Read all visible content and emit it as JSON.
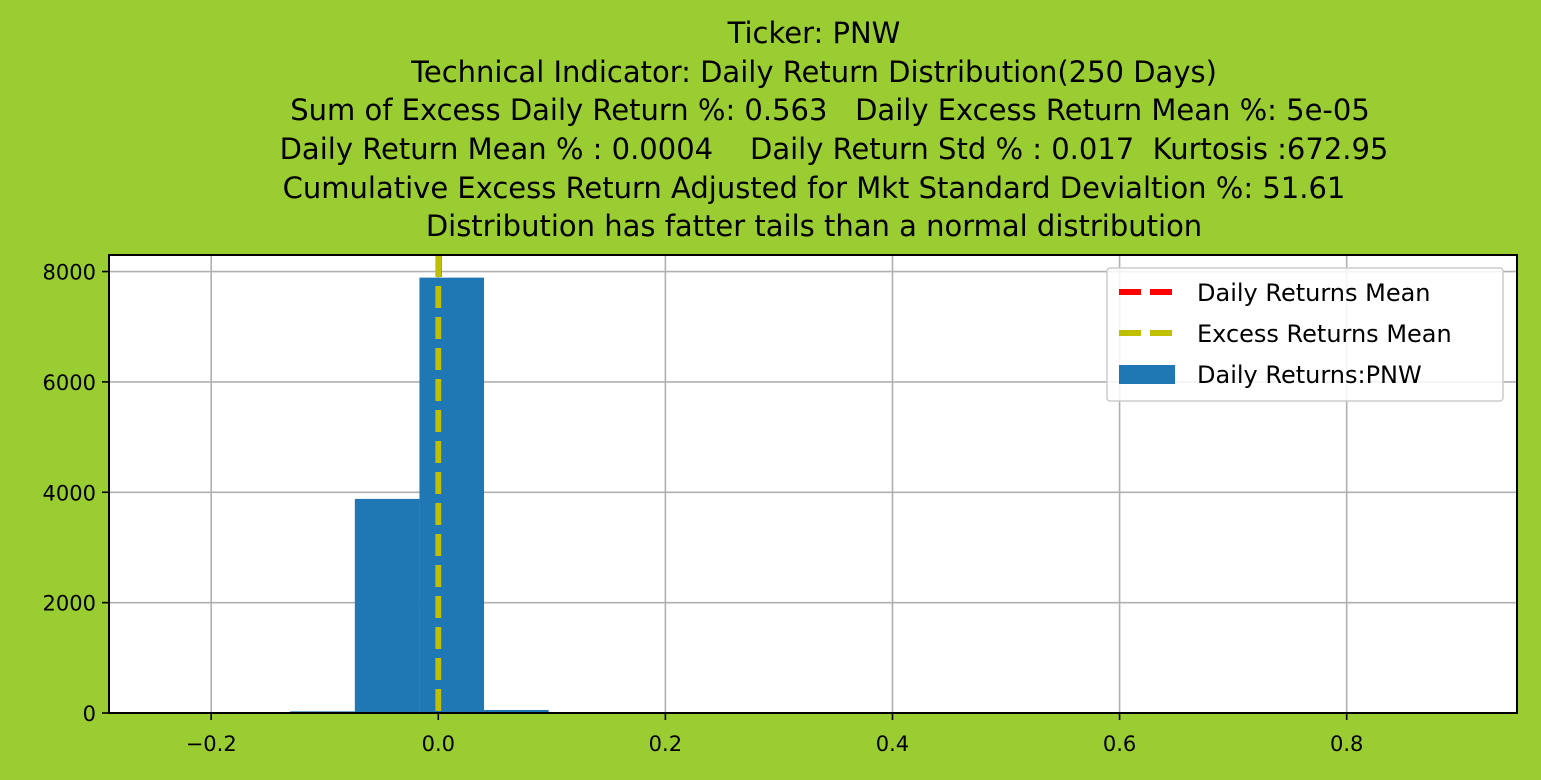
{
  "page": {
    "background": "#9acd32"
  },
  "chart_data": {
    "type": "bar",
    "title_lines": [
      "Ticker: PNW",
      "Technical Indicator: Daily Return Distribution(250 Days)",
      "Sum of Excess Daily Return %: 0.563   Daily Excess Return Mean %: 5e-05",
      "Daily Return Mean % : 0.0004    Daily Return Std % : 0.017  Kurtosis :672.95",
      "Cumulative Excess Return Adjusted for Mkt Standard Devialtion %: 51.61",
      "Distribution has fatter tails than a normal distribution"
    ],
    "xlim": [
      -0.29,
      0.95
    ],
    "ylim": [
      0,
      8300
    ],
    "x_ticks": [
      -0.2,
      0.0,
      0.2,
      0.4,
      0.6,
      0.8
    ],
    "x_tick_labels": [
      "−0.2",
      "0.0",
      "0.2",
      "0.4",
      "0.6",
      "0.8"
    ],
    "y_ticks": [
      0,
      2000,
      4000,
      6000,
      8000
    ],
    "y_tick_labels": [
      "0",
      "2000",
      "4000",
      "6000",
      "8000"
    ],
    "grid": true,
    "histogram": {
      "name": "Daily Returns:PNW",
      "color": "#1f77b4",
      "bin_edges": [
        -0.2442,
        -0.1873,
        -0.1304,
        -0.0735,
        -0.0166,
        0.0403,
        0.0972,
        0.1541,
        0.211,
        0.2679,
        0.3248,
        0.3817,
        0.4386,
        0.4955,
        0.5524,
        0.6093,
        0.6662,
        0.7231,
        0.78,
        0.8369,
        0.8938,
        0.9507
      ],
      "counts": [
        4,
        3,
        30,
        3880,
        7890,
        55,
        5,
        4,
        3,
        2,
        2,
        2,
        2,
        1,
        1,
        1,
        1,
        1,
        1,
        1,
        1
      ]
    },
    "vlines": [
      {
        "name": "Daily Returns Mean",
        "x": 0.0004,
        "color": "#ff0000",
        "style": "dashed"
      },
      {
        "name": "Excess Returns Mean",
        "x": 5e-05,
        "color": "#bfbf00",
        "style": "dashed"
      }
    ],
    "legend": {
      "position": "upper right",
      "entries": [
        {
          "label": "Daily Returns Mean",
          "kind": "line",
          "color": "#ff0000"
        },
        {
          "label": "Excess Returns Mean",
          "kind": "line",
          "color": "#bfbf00"
        },
        {
          "label": "Daily Returns:PNW",
          "kind": "patch",
          "color": "#1f77b4"
        }
      ]
    }
  }
}
